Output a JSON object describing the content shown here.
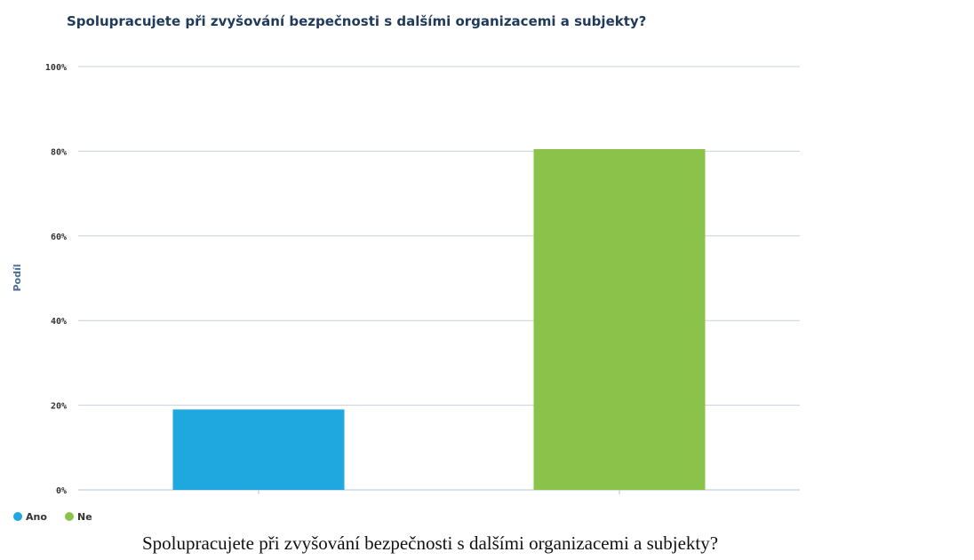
{
  "chart_data": {
    "type": "bar",
    "title": "Spolupracujete při zvyšování bezpečnosti s dalšími organizacemi a subjekty?",
    "ylabel": "Podíl",
    "xlabel": "",
    "ylim": [
      0,
      100
    ],
    "yticks": [
      0,
      20,
      40,
      60,
      80,
      100
    ],
    "ytick_suffix": "%",
    "categories": [
      "Ano",
      "Ne"
    ],
    "values": [
      19,
      80.5
    ],
    "colors": [
      "#1fa8e0",
      "#8bc34a"
    ],
    "legend": {
      "placement": "bottom-left",
      "entries": [
        "Ano",
        "Ne"
      ]
    },
    "grid": true
  },
  "caption": {
    "text": "Spolupracujete při zvyšování bezpečnosti s dalšími organizacemi a subjekty?"
  }
}
